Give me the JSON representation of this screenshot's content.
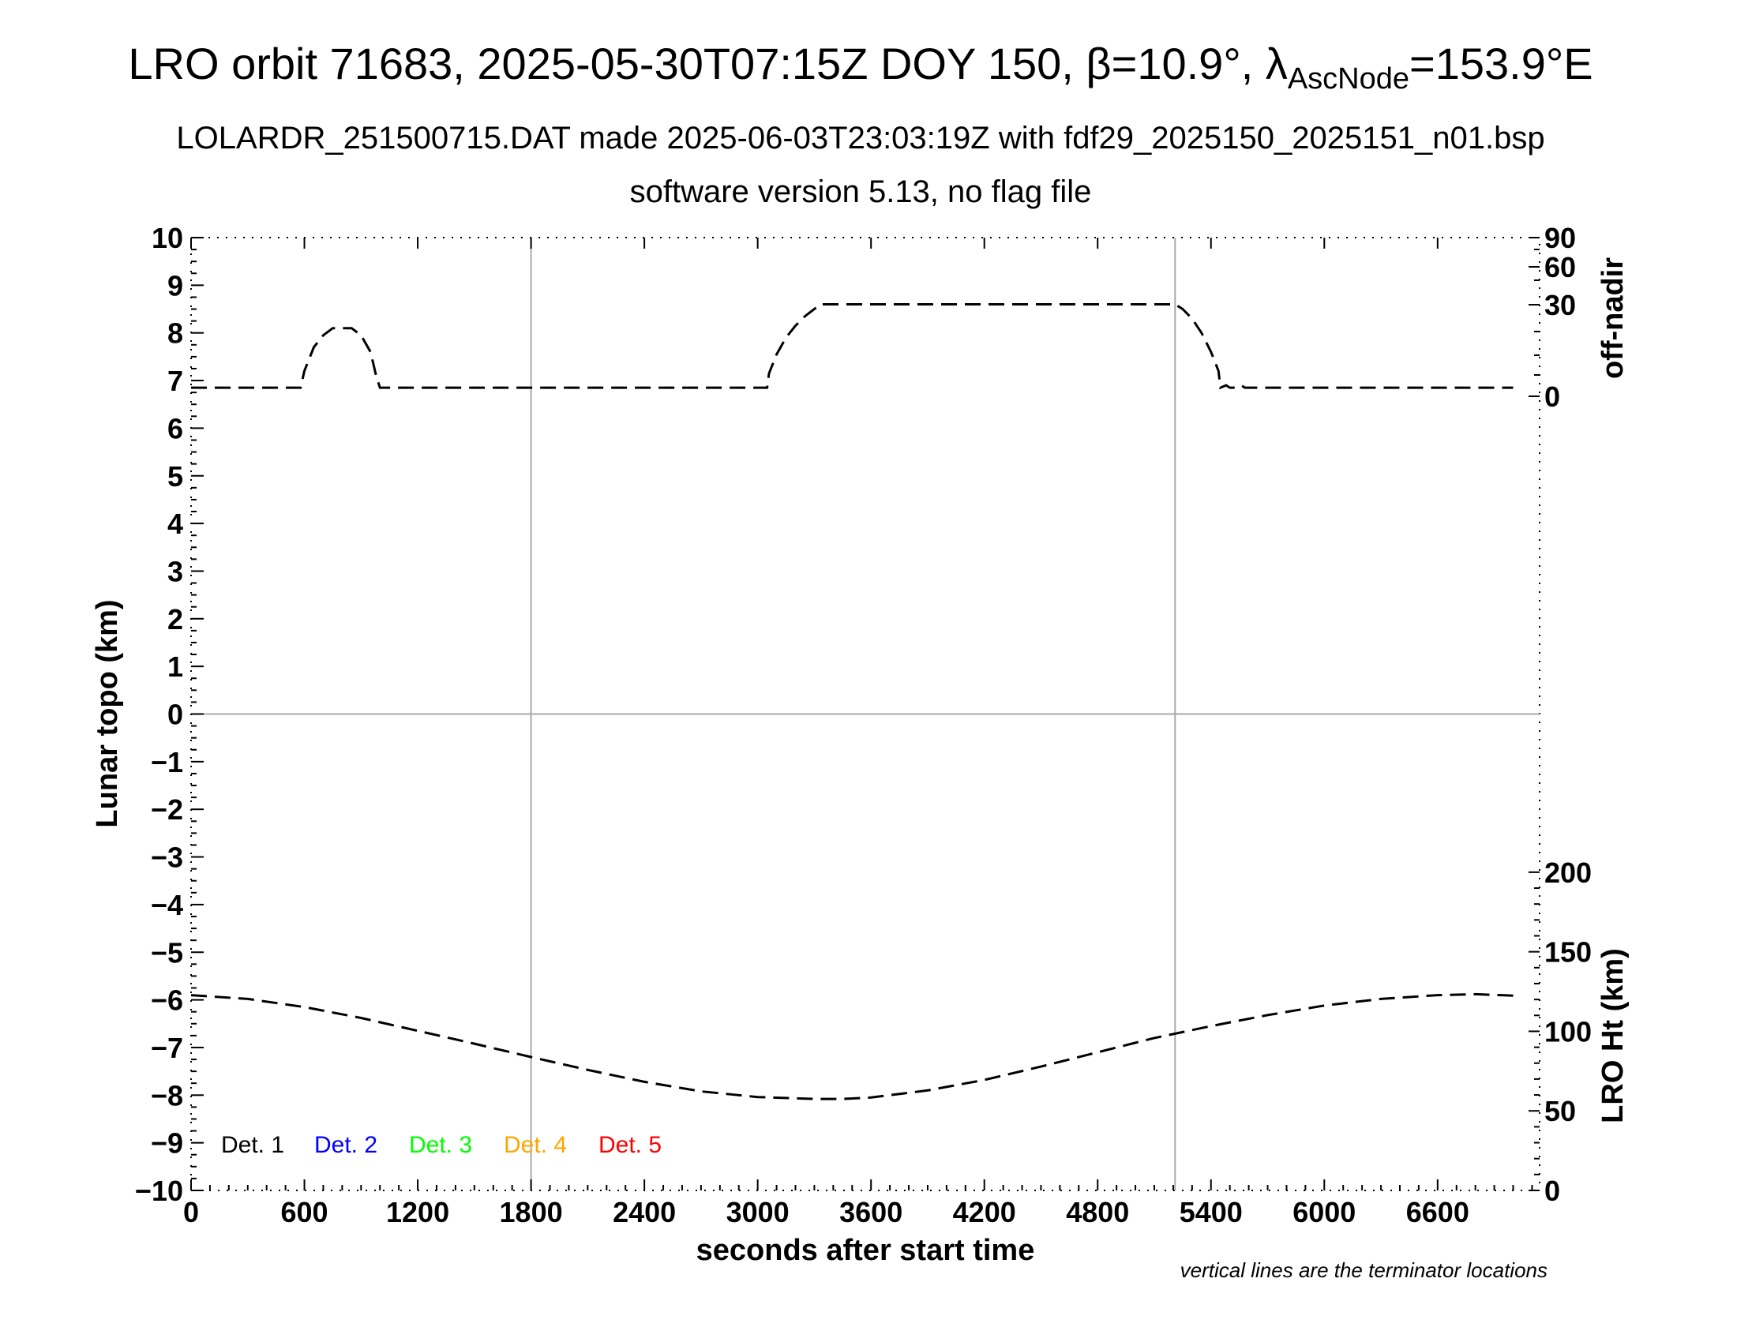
{
  "titles": {
    "line1_prefix": "LRO orbit 71683, 2025-05-30T07:15Z DOY 150, β=10.9°, λ",
    "line1_sub": "AscNode",
    "line1_suffix": "=153.9°E",
    "line2": "LOLARDR_251500715.DAT made 2025-06-03T23:03:19Z with fdf29_2025150_2025151_n01.bsp",
    "line3": "software version 5.13, no flag file"
  },
  "axes": {
    "xlabel": "seconds after start time",
    "ylabel_left": "Lunar topo (km)",
    "ylabel_right_top": "off-nadir",
    "ylabel_right_bottom": "LRO Ht (km)"
  },
  "note": "vertical lines are the terminator locations",
  "legend": [
    {
      "label": "Det. 1",
      "color": "#000000"
    },
    {
      "label": "Det. 2",
      "color": "#0000ff"
    },
    {
      "label": "Det. 3",
      "color": "#00ff00"
    },
    {
      "label": "Det. 4",
      "color": "#ffa500"
    },
    {
      "label": "Det. 5",
      "color": "#ff0000"
    }
  ],
  "chart_data": {
    "type": "line",
    "xlim": [
      0,
      7140
    ],
    "ylim": [
      -10,
      10
    ],
    "x_ticks": [
      "0",
      "600",
      "1200",
      "1800",
      "2400",
      "3000",
      "3600",
      "4200",
      "4800",
      "5400",
      "6000",
      "6600"
    ],
    "x_tick_values": [
      0,
      600,
      1200,
      1800,
      2400,
      3000,
      3600,
      4200,
      4800,
      5400,
      6000,
      6600
    ],
    "y_ticks": [
      "10",
      "9",
      "8",
      "7",
      "6",
      "5",
      "4",
      "3",
      "2",
      "1",
      "0",
      "−1",
      "−2",
      "−3",
      "−4",
      "−5",
      "−6",
      "−7",
      "−8",
      "−9",
      "−10"
    ],
    "y_tick_values": [
      10,
      9,
      8,
      7,
      6,
      5,
      4,
      3,
      2,
      1,
      0,
      -1,
      -2,
      -3,
      -4,
      -5,
      -6,
      -7,
      -8,
      -9,
      -10
    ],
    "right_top_axis": {
      "label": "off-nadir",
      "ticks": [
        "90",
        "60",
        "30",
        "0"
      ]
    },
    "right_bottom_axis": {
      "label": "LRO Ht (km)",
      "ylim": [
        0,
        200
      ],
      "ticks": [
        "200",
        "150",
        "100",
        "50",
        "0"
      ],
      "tick_values": [
        200,
        150,
        100,
        50,
        0
      ]
    },
    "terminator_x": [
      1800,
      5210
    ],
    "zero_line_y": 0,
    "grid": false,
    "legend_position": "bottom-left",
    "series": [
      {
        "role": "off-nadir",
        "style": "dashed",
        "color": "#000000",
        "x": [
          0,
          580,
          600,
          650,
          700,
          750,
          800,
          850,
          900,
          950,
          980,
          1000,
          1200,
          1500,
          2000,
          2500,
          2900,
          3050,
          3060,
          3100,
          3150,
          3200,
          3250,
          3300,
          3330,
          3600,
          4000,
          4500,
          5000,
          5210,
          5250,
          5300,
          5350,
          5400,
          5440,
          5450,
          5480,
          5500,
          5520,
          5560,
          5580,
          5600,
          6000,
          6500,
          7000
        ],
        "y": [
          6.85,
          6.85,
          7.2,
          7.7,
          7.95,
          8.1,
          8.1,
          8.1,
          7.95,
          7.6,
          7.1,
          6.85,
          6.85,
          6.85,
          6.85,
          6.85,
          6.85,
          6.85,
          7.15,
          7.55,
          7.9,
          8.15,
          8.35,
          8.5,
          8.6,
          8.6,
          8.6,
          8.6,
          8.6,
          8.6,
          8.5,
          8.3,
          8.0,
          7.6,
          7.2,
          6.85,
          6.9,
          6.85,
          6.85,
          6.9,
          6.85,
          6.85,
          6.85,
          6.85,
          6.85
        ]
      },
      {
        "role": "LRO Ht",
        "style": "dashed",
        "color": "#000000",
        "x": [
          0,
          300,
          600,
          900,
          1200,
          1500,
          1800,
          2100,
          2400,
          2700,
          3000,
          3300,
          3450,
          3600,
          3900,
          4200,
          4500,
          4800,
          5100,
          5400,
          5700,
          6000,
          6300,
          6600,
          6800,
          7000
        ],
        "y": [
          -5.9,
          -5.98,
          -6.15,
          -6.38,
          -6.65,
          -6.92,
          -7.2,
          -7.47,
          -7.72,
          -7.92,
          -8.04,
          -8.08,
          -8.08,
          -8.05,
          -7.9,
          -7.68,
          -7.4,
          -7.1,
          -6.8,
          -6.55,
          -6.32,
          -6.12,
          -5.98,
          -5.9,
          -5.88,
          -5.91
        ]
      }
    ]
  }
}
